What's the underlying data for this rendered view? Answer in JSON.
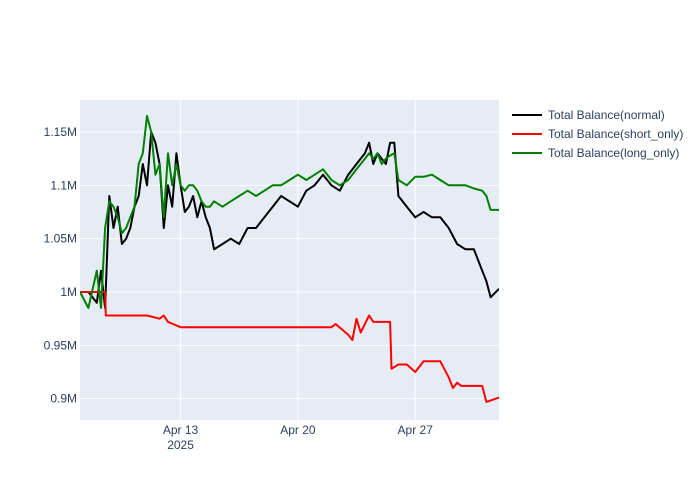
{
  "chart_data": {
    "type": "line",
    "title": "",
    "xlabel": "",
    "ylabel": "",
    "x_range": [
      "2025-04-07",
      "2025-05-02"
    ],
    "ylim": [
      0.88,
      1.18
    ],
    "x_ticks": [
      {
        "date": "2025-04-13",
        "label": "Apr 13",
        "sublabel": "2025"
      },
      {
        "date": "2025-04-20",
        "label": "Apr 20",
        "sublabel": ""
      },
      {
        "date": "2025-04-27",
        "label": "Apr 27",
        "sublabel": ""
      }
    ],
    "y_ticks": [
      {
        "value": 0.9,
        "label": "0.9M"
      },
      {
        "value": 0.95,
        "label": "0.95M"
      },
      {
        "value": 1.0,
        "label": "1M"
      },
      {
        "value": 1.05,
        "label": "1.05M"
      },
      {
        "value": 1.1,
        "label": "1.1M"
      },
      {
        "value": 1.15,
        "label": "1.15M"
      }
    ],
    "plot_bg": "#e5ecf6",
    "grid": true,
    "legend_position": "top-right",
    "series": [
      {
        "name": "Total Balance(normal)",
        "color": "#000000",
        "x": [
          "2025-04-07",
          "2025-04-07 12:00",
          "2025-04-08",
          "2025-04-08 06:00",
          "2025-04-08 12:00",
          "2025-04-08 18:00",
          "2025-04-09",
          "2025-04-09 06:00",
          "2025-04-09 12:00",
          "2025-04-09 18:00",
          "2025-04-10",
          "2025-04-10 06:00",
          "2025-04-10 12:00",
          "2025-04-10 18:00",
          "2025-04-11",
          "2025-04-11 06:00",
          "2025-04-11 12:00",
          "2025-04-11 18:00",
          "2025-04-12",
          "2025-04-12 06:00",
          "2025-04-12 12:00",
          "2025-04-12 18:00",
          "2025-04-13",
          "2025-04-13 06:00",
          "2025-04-13 12:00",
          "2025-04-13 18:00",
          "2025-04-14",
          "2025-04-14 06:00",
          "2025-04-14 12:00",
          "2025-04-14 18:00",
          "2025-04-15",
          "2025-04-15 12:00",
          "2025-04-16",
          "2025-04-16 12:00",
          "2025-04-17",
          "2025-04-17 12:00",
          "2025-04-18",
          "2025-04-18 12:00",
          "2025-04-19",
          "2025-04-19 12:00",
          "2025-04-20",
          "2025-04-20 12:00",
          "2025-04-21",
          "2025-04-21 12:00",
          "2025-04-22",
          "2025-04-22 12:00",
          "2025-04-23",
          "2025-04-23 12:00",
          "2025-04-24",
          "2025-04-24 06:00",
          "2025-04-24 12:00",
          "2025-04-24 18:00",
          "2025-04-25",
          "2025-04-25 06:00",
          "2025-04-25 12:00",
          "2025-04-25 18:00",
          "2025-04-26",
          "2025-04-26 12:00",
          "2025-04-27",
          "2025-04-27 12:00",
          "2025-04-28",
          "2025-04-28 12:00",
          "2025-04-29",
          "2025-04-29 12:00",
          "2025-04-30",
          "2025-04-30 12:00",
          "2025-05-01",
          "2025-05-01 06:00",
          "2025-05-01 12:00",
          "2025-05-02"
        ],
        "y": [
          1.0,
          1.0,
          0.99,
          1.02,
          0.985,
          1.09,
          1.06,
          1.08,
          1.045,
          1.05,
          1.06,
          1.08,
          1.09,
          1.12,
          1.1,
          1.15,
          1.14,
          1.12,
          1.06,
          1.1,
          1.08,
          1.13,
          1.1,
          1.075,
          1.08,
          1.09,
          1.07,
          1.085,
          1.07,
          1.06,
          1.04,
          1.045,
          1.05,
          1.045,
          1.06,
          1.06,
          1.07,
          1.08,
          1.09,
          1.085,
          1.08,
          1.095,
          1.1,
          1.11,
          1.1,
          1.095,
          1.11,
          1.12,
          1.13,
          1.14,
          1.12,
          1.13,
          1.125,
          1.12,
          1.14,
          1.14,
          1.09,
          1.08,
          1.07,
          1.075,
          1.07,
          1.07,
          1.06,
          1.045,
          1.04,
          1.04,
          1.02,
          1.01,
          0.995,
          1.003
        ]
      },
      {
        "name": "Total Balance(short_only)",
        "color": "#ff0000",
        "x": [
          "2025-04-07",
          "2025-04-08 12:00",
          "2025-04-08 13:00",
          "2025-04-11",
          "2025-04-11 18:00",
          "2025-04-12",
          "2025-04-12 06:00",
          "2025-04-13",
          "2025-04-15",
          "2025-04-17",
          "2025-04-19",
          "2025-04-22",
          "2025-04-22 06:00",
          "2025-04-23",
          "2025-04-23 06:00",
          "2025-04-23 12:00",
          "2025-04-23 18:00",
          "2025-04-24",
          "2025-04-24 06:00",
          "2025-04-24 12:00",
          "2025-04-24 18:00",
          "2025-04-25",
          "2025-04-25 12:00",
          "2025-04-25 14:00",
          "2025-04-26",
          "2025-04-26 12:00",
          "2025-04-27",
          "2025-04-27 12:00",
          "2025-04-28",
          "2025-04-28 12:00",
          "2025-04-29",
          "2025-04-29 06:00",
          "2025-04-29 12:00",
          "2025-04-29 18:00",
          "2025-04-30",
          "2025-05-01",
          "2025-05-01 06:00",
          "2025-05-02"
        ],
        "y": [
          1.0,
          1.0,
          0.978,
          0.978,
          0.975,
          0.978,
          0.972,
          0.967,
          0.967,
          0.967,
          0.967,
          0.967,
          0.97,
          0.96,
          0.955,
          0.975,
          0.962,
          0.97,
          0.978,
          0.972,
          0.972,
          0.972,
          0.972,
          0.928,
          0.932,
          0.932,
          0.925,
          0.935,
          0.935,
          0.935,
          0.92,
          0.91,
          0.915,
          0.912,
          0.912,
          0.912,
          0.897,
          0.901
        ]
      },
      {
        "name": "Total Balance(long_only)",
        "color": "#008000",
        "x": [
          "2025-04-07",
          "2025-04-07 12:00",
          "2025-04-08",
          "2025-04-08 06:00",
          "2025-04-08 12:00",
          "2025-04-08 18:00",
          "2025-04-09",
          "2025-04-09 06:00",
          "2025-04-09 12:00",
          "2025-04-09 18:00",
          "2025-04-10",
          "2025-04-10 06:00",
          "2025-04-10 12:00",
          "2025-04-10 18:00",
          "2025-04-11",
          "2025-04-11 06:00",
          "2025-04-11 12:00",
          "2025-04-11 18:00",
          "2025-04-12",
          "2025-04-12 06:00",
          "2025-04-12 12:00",
          "2025-04-12 18:00",
          "2025-04-13",
          "2025-04-13 06:00",
          "2025-04-13 12:00",
          "2025-04-13 18:00",
          "2025-04-14",
          "2025-04-14 06:00",
          "2025-04-14 12:00",
          "2025-04-14 18:00",
          "2025-04-15",
          "2025-04-15 12:00",
          "2025-04-16",
          "2025-04-16 12:00",
          "2025-04-17",
          "2025-04-17 12:00",
          "2025-04-18",
          "2025-04-18 12:00",
          "2025-04-19",
          "2025-04-19 12:00",
          "2025-04-20",
          "2025-04-20 12:00",
          "2025-04-21",
          "2025-04-21 12:00",
          "2025-04-22",
          "2025-04-22 12:00",
          "2025-04-23",
          "2025-04-23 12:00",
          "2025-04-24",
          "2025-04-24 06:00",
          "2025-04-24 12:00",
          "2025-04-24 18:00",
          "2025-04-25",
          "2025-04-25 06:00",
          "2025-04-25 12:00",
          "2025-04-25 18:00",
          "2025-04-26",
          "2025-04-26 12:00",
          "2025-04-27",
          "2025-04-27 12:00",
          "2025-04-28",
          "2025-04-28 12:00",
          "2025-04-29",
          "2025-04-29 12:00",
          "2025-04-30",
          "2025-04-30 12:00",
          "2025-05-01",
          "2025-05-01 06:00",
          "2025-05-01 12:00",
          "2025-05-02"
        ],
        "y": [
          1.0,
          0.985,
          1.02,
          0.985,
          1.06,
          1.085,
          1.08,
          1.07,
          1.055,
          1.06,
          1.07,
          1.08,
          1.12,
          1.13,
          1.165,
          1.15,
          1.11,
          1.12,
          1.07,
          1.13,
          1.1,
          1.12,
          1.1,
          1.095,
          1.1,
          1.1,
          1.095,
          1.085,
          1.08,
          1.08,
          1.085,
          1.08,
          1.085,
          1.09,
          1.095,
          1.09,
          1.095,
          1.1,
          1.1,
          1.105,
          1.11,
          1.105,
          1.11,
          1.115,
          1.105,
          1.1,
          1.105,
          1.115,
          1.125,
          1.13,
          1.125,
          1.13,
          1.12,
          1.125,
          1.128,
          1.13,
          1.105,
          1.1,
          1.108,
          1.108,
          1.11,
          1.105,
          1.1,
          1.1,
          1.1,
          1.097,
          1.095,
          1.09,
          1.077,
          1.077
        ]
      }
    ]
  }
}
